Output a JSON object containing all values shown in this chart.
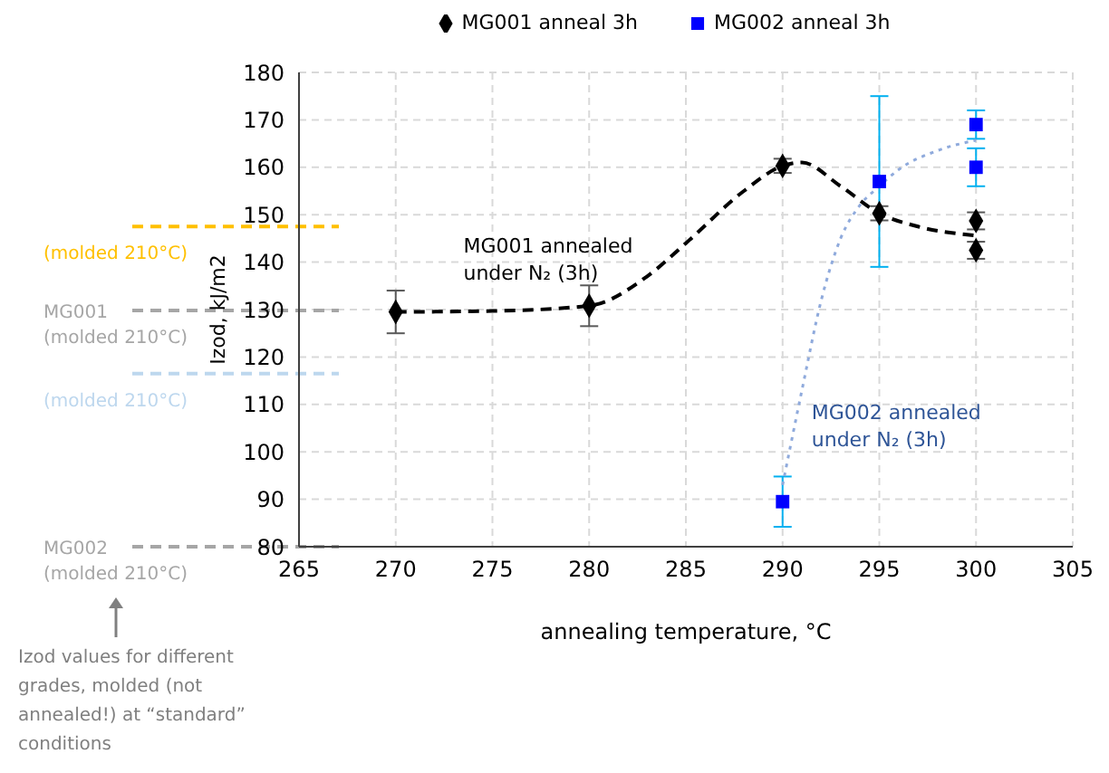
{
  "chart_data": {
    "type": "scatter",
    "xlabel": "annealing temperature, °C",
    "ylabel": "Izod, kJ/m2",
    "xlim": [
      265,
      305
    ],
    "xticks": [
      265,
      270,
      275,
      280,
      285,
      290,
      295,
      300,
      305
    ],
    "ylim": [
      80,
      180
    ],
    "yticks": [
      80,
      90,
      100,
      110,
      120,
      130,
      140,
      150,
      160,
      170,
      180
    ],
    "grid": true,
    "legend": "top",
    "series": [
      {
        "name": "MG001 anneal 3h",
        "color": "#000000",
        "marker": "diamond",
        "x": [
          270,
          280,
          290,
          295,
          300,
          300
        ],
        "values": [
          129.5,
          130.8,
          160.3,
          150.3,
          148.7,
          142.5
        ],
        "errors": [
          4.5,
          4.3,
          1.5,
          1.5,
          1.8,
          1.8
        ]
      },
      {
        "name": "MG002 anneal 3h",
        "color": "#0000ff",
        "marker": "square",
        "x": [
          290,
          295,
          300,
          300
        ],
        "values": [
          89.5,
          157,
          169,
          160
        ],
        "errors": [
          5.3,
          18,
          3,
          4
        ]
      },
      {
        "type": "line",
        "color": "#000000",
        "line_style": "dashed",
        "marker": "none",
        "x": [
          270,
          275,
          280,
          283,
          285,
          288,
          290,
          291,
          293,
          295,
          297,
          300
        ],
        "values": [
          129.5,
          129.7,
          130.8,
          137,
          144,
          155,
          160.3,
          161,
          156,
          150.3,
          147.5,
          145.6
        ]
      },
      {
        "type": "line",
        "color": "#8faadc",
        "line_style": "dotted",
        "marker": "none",
        "x": [
          290,
          291,
          292,
          293,
          294,
          295,
          296,
          298,
          300
        ],
        "values": [
          93,
          113,
          132,
          145,
          152,
          156,
          159.5,
          163.5,
          165.7
        ]
      }
    ],
    "ref_lines": [
      {
        "axis": "y",
        "value": 147.5,
        "label": "(molded 210°C)",
        "color": "#ffc000",
        "line_style": "dashed"
      },
      {
        "axis": "y",
        "value": 129.8,
        "label": "MG001\n(molded 210°C)",
        "color": "#a6a6a6",
        "line_style": "dashed"
      },
      {
        "axis": "y",
        "value": 116.5,
        "label": "(molded 210°C)",
        "color": "#bdd7ee",
        "line_style": "dashed"
      },
      {
        "axis": "y",
        "value": 80,
        "label": "MG002\n(molded 210°C)",
        "color": "#a6a6a6",
        "line_style": "dashed"
      }
    ],
    "annotations": [
      "MG001 annealed\nunder N₂ (3h)",
      "MG002 annealed\nunder N₂ (3h)",
      "Izod values for different grades, molded (not annealed!) at “standard” conditions"
    ]
  }
}
